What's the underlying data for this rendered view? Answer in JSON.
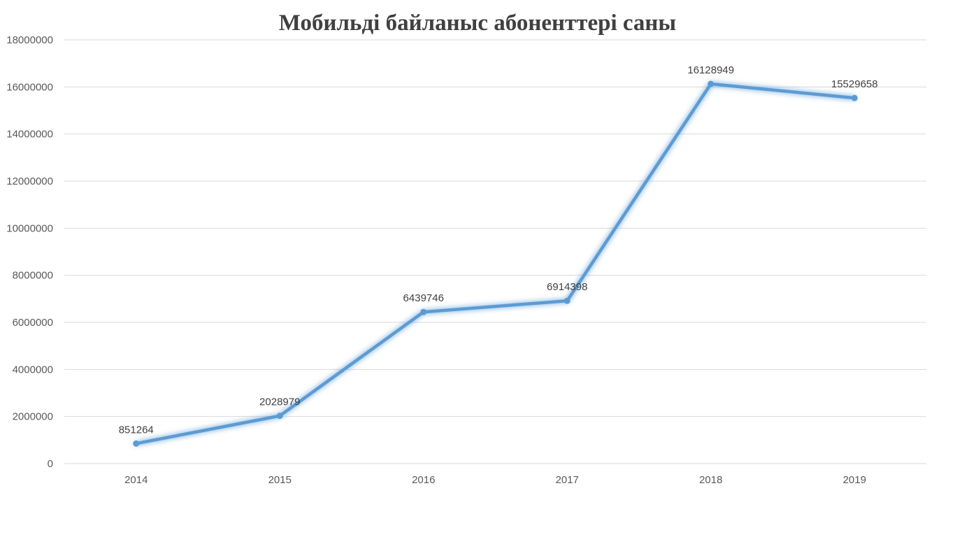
{
  "chart_data": {
    "type": "line",
    "title": "Мобильді байланыс абоненттері саны",
    "categories": [
      "2014",
      "2015",
      "2016",
      "2017",
      "2018",
      "2019"
    ],
    "series": [
      {
        "values": [
          851264,
          2028979,
          6439746,
          6914398,
          16128949,
          15529658
        ]
      }
    ],
    "data_labels": [
      "851264",
      "2028979",
      "6439746",
      "6914398",
      "16128949",
      "15529658"
    ],
    "y_ticks": [
      "0",
      "2000000",
      "4000000",
      "6000000",
      "8000000",
      "10000000",
      "12000000",
      "14000000",
      "16000000",
      "18000000"
    ],
    "ylim": [
      0,
      18000000
    ],
    "grid": true,
    "legend": "none",
    "line_color": "#5b9bd5"
  }
}
